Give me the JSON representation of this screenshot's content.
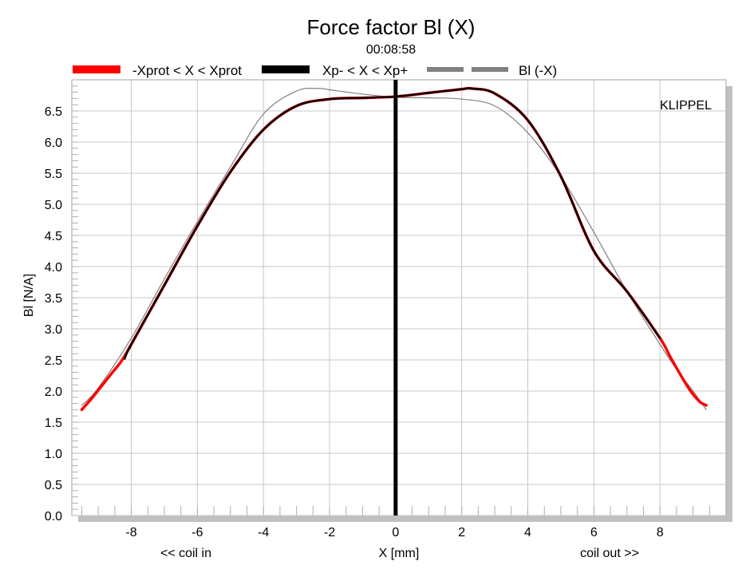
{
  "chart_data": {
    "type": "line",
    "title": "Force factor Bl (X)",
    "subtitle": "00:08:58",
    "watermark": "KLIPPEL",
    "xlabel": "X [mm]",
    "xlabel_left": "<< coil in",
    "xlabel_right": "coil out >>",
    "ylabel": "Bl [N/A]",
    "xlim": [
      -9.8,
      10
    ],
    "ylim": [
      0,
      7.0
    ],
    "xticks": [
      -8,
      -6,
      -4,
      -2,
      0,
      2,
      4,
      6,
      8
    ],
    "xtick_labels": [
      "-8",
      "-6",
      "-4",
      "-2",
      "0",
      "2",
      "4",
      "6",
      "8"
    ],
    "yticks": [
      0,
      0.5,
      1.0,
      1.5,
      2.0,
      2.5,
      3.0,
      3.5,
      4.0,
      4.5,
      5.0,
      5.5,
      6.0,
      6.5
    ],
    "ytick_labels": [
      "0.0",
      "0.5",
      "1.0",
      "1.5",
      "2.0",
      "2.5",
      "3.0",
      "3.5",
      "4.0",
      "4.5",
      "5.0",
      "5.5",
      "6.0",
      "6.5"
    ],
    "grid": true,
    "legend_position": "top",
    "series": [
      {
        "name": "-Xprot < X < Xprot",
        "color": "#ff0000",
        "style": "solid",
        "x": [
          -9.5,
          -9.2,
          -8.9,
          -8.6,
          -8.3,
          -8.0,
          -7.0,
          -6.0,
          -5.0,
          -4.0,
          -3.0,
          -2.0,
          -1.0,
          0.0,
          1.0,
          2.0,
          2.3,
          3.0,
          4.0,
          5.0,
          6.0,
          7.0,
          8.0,
          8.3,
          8.6,
          8.9,
          9.2,
          9.4
        ],
        "y": [
          1.7,
          1.88,
          2.08,
          2.28,
          2.48,
          2.75,
          3.7,
          4.65,
          5.52,
          6.2,
          6.58,
          6.69,
          6.71,
          6.73,
          6.79,
          6.85,
          6.86,
          6.78,
          6.35,
          5.45,
          4.25,
          3.6,
          2.85,
          2.56,
          2.28,
          2.02,
          1.83,
          1.77
        ]
      },
      {
        "name": "Xp- < X < Xp+",
        "color": "#000000",
        "style": "solid",
        "x": [
          -8.2,
          -8.0,
          -7.0,
          -6.0,
          -5.0,
          -4.0,
          -3.0,
          -2.0,
          -1.0,
          0.0,
          1.0,
          2.0,
          2.3,
          3.0,
          4.0,
          5.0,
          6.0,
          7.0,
          8.0
        ],
        "y": [
          2.52,
          2.75,
          3.7,
          4.65,
          5.52,
          6.2,
          6.58,
          6.69,
          6.71,
          6.73,
          6.79,
          6.85,
          6.86,
          6.78,
          6.35,
          5.45,
          4.25,
          3.6,
          2.85
        ]
      },
      {
        "name": "Bl (-X)",
        "color": "#808080",
        "style": "dashed",
        "x": [
          -9.5,
          -9.0,
          -8.0,
          -7.0,
          -6.0,
          -5.0,
          -4.0,
          -3.0,
          -2.3,
          -2.0,
          -1.0,
          0.0,
          1.0,
          2.0,
          3.0,
          4.0,
          5.0,
          6.0,
          7.0,
          8.0,
          8.5,
          9.0,
          9.4
        ],
        "y": [
          1.77,
          2.05,
          2.85,
          3.8,
          4.72,
          5.6,
          6.45,
          6.82,
          6.86,
          6.84,
          6.77,
          6.72,
          6.71,
          6.69,
          6.58,
          6.15,
          5.45,
          4.55,
          3.6,
          2.75,
          2.35,
          2.0,
          1.7
        ]
      }
    ],
    "vertical_marker": {
      "x": 0,
      "color": "#000000"
    }
  }
}
